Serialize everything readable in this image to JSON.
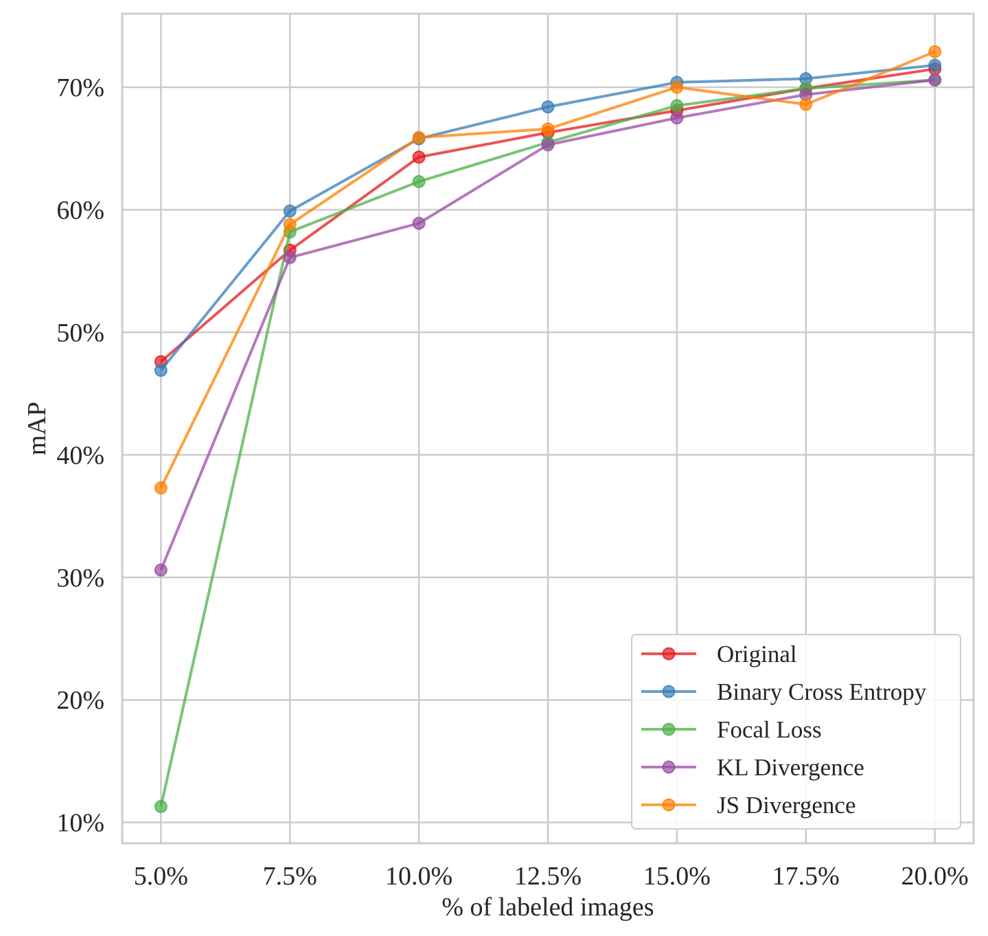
{
  "chart_data": {
    "type": "line",
    "xlabel": "% of labeled images",
    "ylabel": "mAP",
    "x": [
      5.0,
      7.5,
      10.0,
      12.5,
      15.0,
      17.5,
      20.0
    ],
    "x_tick_labels": [
      "5.0%",
      "7.5%",
      "10.0%",
      "12.5%",
      "15.0%",
      "17.5%",
      "20.0%"
    ],
    "y_ticks": [
      10,
      20,
      30,
      40,
      50,
      60,
      70
    ],
    "y_tick_labels": [
      "10%",
      "20%",
      "30%",
      "40%",
      "50%",
      "60%",
      "70%"
    ],
    "xlim": [
      4.25,
      20.75
    ],
    "ylim": [
      8.3,
      76.0
    ],
    "grid": true,
    "legend_position": "bottom-right",
    "series": [
      {
        "name": "Original",
        "color": "#e41a1c",
        "values": [
          47.6,
          56.7,
          64.3,
          66.3,
          68.1,
          69.9,
          71.5
        ]
      },
      {
        "name": "Binary Cross Entropy",
        "color": "#377eb8",
        "values": [
          46.9,
          59.9,
          65.8,
          68.4,
          70.4,
          70.7,
          71.8
        ]
      },
      {
        "name": "Focal Loss",
        "color": "#4daf4a",
        "values": [
          11.3,
          58.2,
          62.3,
          65.5,
          68.5,
          69.9,
          70.6
        ]
      },
      {
        "name": "KL Divergence",
        "color": "#984ea3",
        "values": [
          30.6,
          56.1,
          58.9,
          65.3,
          67.5,
          69.4,
          70.6
        ]
      },
      {
        "name": "JS Divergence",
        "color": "#ff7f00",
        "values": [
          37.3,
          58.8,
          65.9,
          66.6,
          70.0,
          68.6,
          72.9
        ]
      }
    ]
  }
}
